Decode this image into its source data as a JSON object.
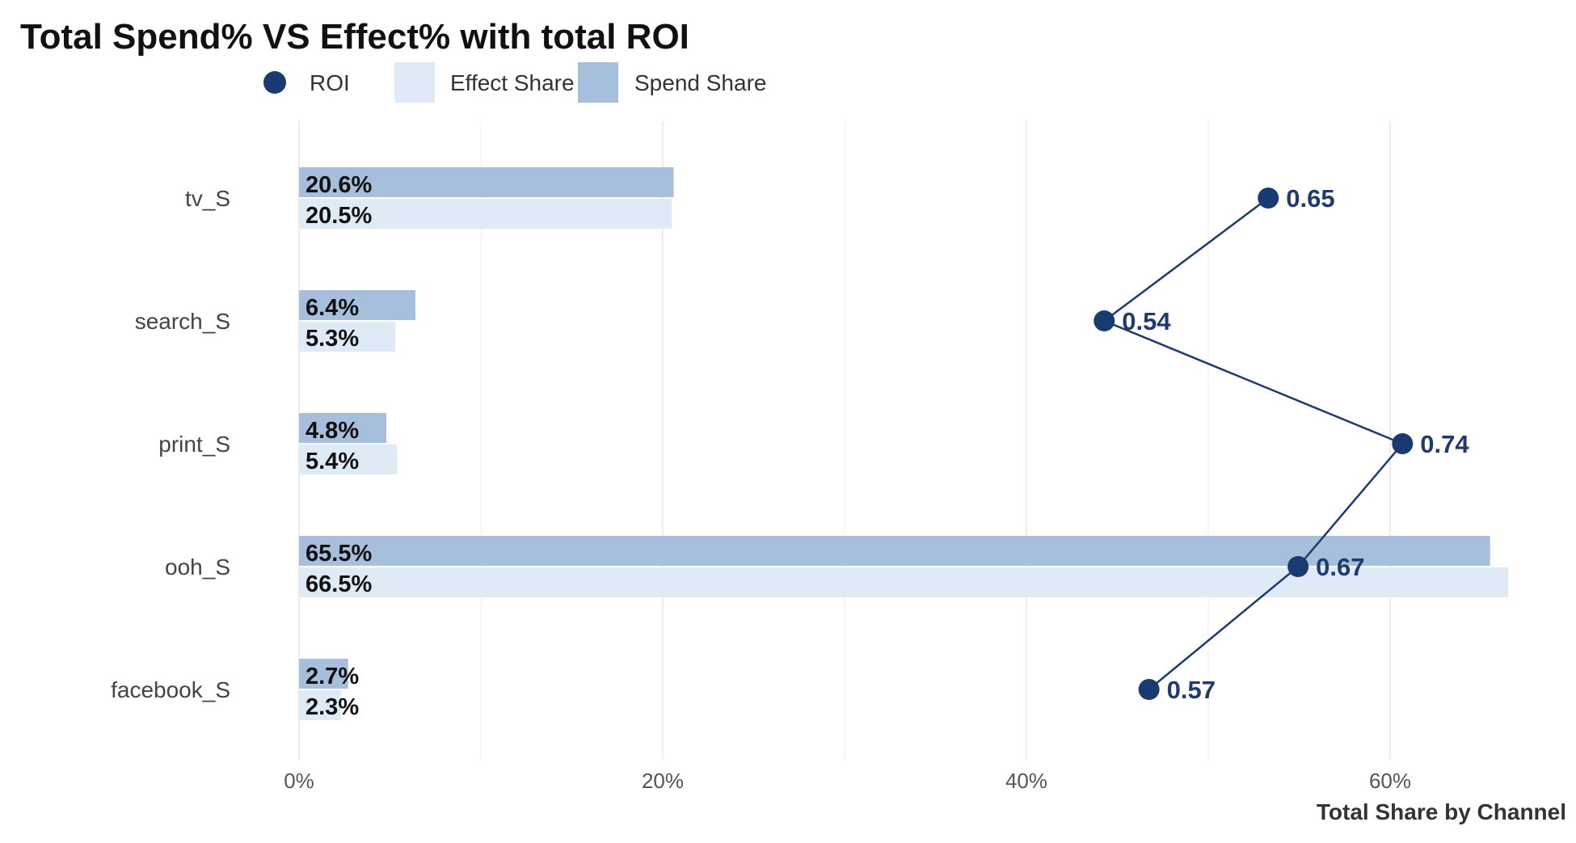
{
  "chart_data": {
    "type": "bar",
    "title": "Total Spend% VS Effect% with total ROI",
    "xlabel": "Total Share by Channel",
    "ylabel": "",
    "xlim": [
      0,
      0.68
    ],
    "x_ticks": [
      0,
      0.2,
      0.4,
      0.6
    ],
    "x_tick_labels": [
      "0%",
      "20%",
      "40%",
      "60%"
    ],
    "grid": true,
    "legend_position": "top",
    "legend": [
      {
        "name": "ROI",
        "marker": "circle",
        "color": "#1a3a72"
      },
      {
        "name": "Effect Share",
        "marker": "square",
        "color": "#deeaf5"
      },
      {
        "name": "Spend Share",
        "marker": "square",
        "color": "#a6bfdc"
      }
    ],
    "categories": [
      "tv_S",
      "search_S",
      "print_S",
      "ooh_S",
      "facebook_S"
    ],
    "series": [
      {
        "name": "Spend Share",
        "color": "#a6bfdc",
        "values": [
          0.206,
          0.064,
          0.048,
          0.655,
          0.027
        ],
        "labels": [
          "20.6%",
          "6.4%",
          "4.8%",
          "65.5%",
          "2.7%"
        ]
      },
      {
        "name": "Effect Share",
        "color": "#deeaf5",
        "values": [
          0.205,
          0.053,
          0.054,
          0.665,
          0.023
        ],
        "labels": [
          "20.5%",
          "5.3%",
          "5.4%",
          "66.5%",
          "2.3%"
        ]
      },
      {
        "name": "ROI",
        "color": "#1a3a72",
        "values": [
          0.65,
          0.54,
          0.74,
          0.67,
          0.57
        ],
        "labels": [
          "0.65",
          "0.54",
          "0.74",
          "0.67",
          "0.57"
        ]
      }
    ]
  }
}
